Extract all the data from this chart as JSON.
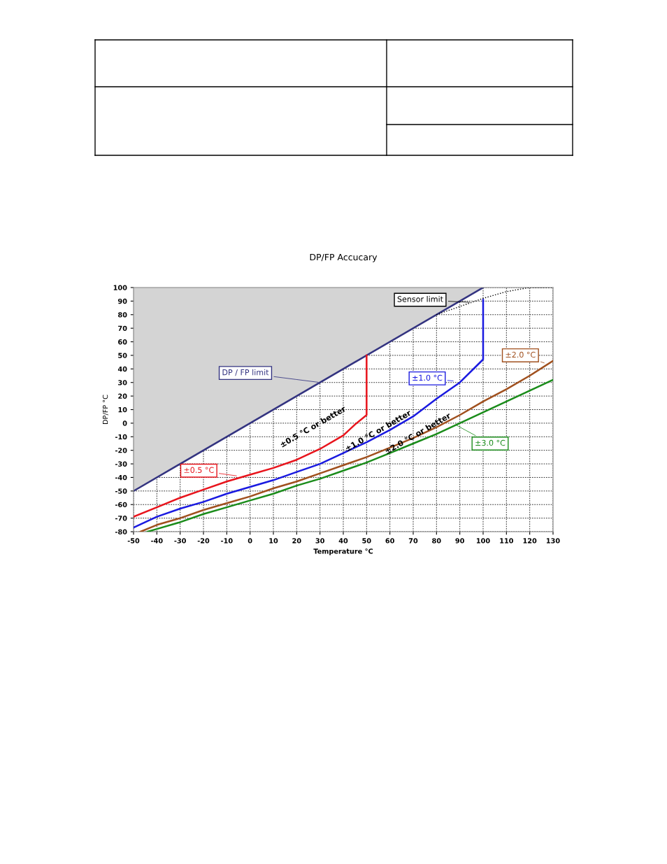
{
  "chart_data": {
    "type": "line",
    "title": "DP/FP Accucary",
    "xlabel": "Temperature °C",
    "ylabel": "DP/FP °C",
    "xlim": [
      -50,
      130
    ],
    "xticks": [
      -50,
      -40,
      -30,
      -20,
      -10,
      0,
      10,
      20,
      30,
      40,
      50,
      60,
      70,
      80,
      90,
      100,
      110,
      120,
      130
    ],
    "ylim": [
      -80,
      100
    ],
    "yticks": [
      -80,
      -70,
      -60,
      -50,
      -40,
      -30,
      -20,
      -10,
      0,
      10,
      20,
      30,
      40,
      50,
      60,
      70,
      80,
      90,
      100
    ],
    "grid": true,
    "legend": "top left",
    "line_style": "solid",
    "marker": "none",
    "series": [
      {
        "name": "DP / FP limit",
        "color": "#333380",
        "x": [
          -50,
          100
        ],
        "values": [
          -50,
          100
        ]
      },
      {
        "name": "Sensor limit",
        "color": "#000000",
        "line_style": "dotted",
        "x": [
          80,
          90,
          100,
          110,
          120,
          130
        ],
        "values": [
          80,
          86,
          92,
          97,
          100,
          100
        ]
      },
      {
        "name": "±0.5 °C",
        "color": "#e8141c",
        "x": [
          -50,
          -40,
          -30,
          -20,
          -10,
          0,
          10,
          20,
          30,
          40,
          45,
          50,
          50
        ],
        "values": [
          -69,
          -62,
          -55,
          -49,
          -43,
          -38,
          -33,
          -27,
          -19,
          -9,
          -1,
          6,
          50
        ]
      },
      {
        "name": "±1.0 °C",
        "color": "#1a1ae0",
        "x": [
          -50,
          -40,
          -30,
          -20,
          -10,
          0,
          10,
          20,
          30,
          40,
          50,
          60,
          70,
          80,
          90,
          100,
          100
        ],
        "values": [
          -77,
          -69,
          -63,
          -58,
          -52,
          -47,
          -42,
          -36,
          -30,
          -22,
          -14,
          -5,
          5,
          18,
          30,
          47,
          91
        ]
      },
      {
        "name": "±2.0 °C",
        "color": "#a0501e",
        "x": [
          -47,
          -40,
          -30,
          -20,
          -10,
          0,
          10,
          20,
          30,
          40,
          50,
          60,
          70,
          80,
          90,
          100,
          110,
          120,
          130
        ],
        "values": [
          -80,
          -75,
          -70,
          -64,
          -59,
          -54,
          -48,
          -43,
          -37,
          -31,
          -25,
          -18,
          -11,
          -3,
          6,
          16,
          25,
          35,
          46
        ]
      },
      {
        "name": "±3.0 °C",
        "color": "#1a8c1a",
        "x": [
          -44,
          -40,
          -30,
          -20,
          -10,
          0,
          10,
          20,
          30,
          40,
          50,
          60,
          70,
          80,
          90,
          100,
          110,
          120,
          130
        ],
        "values": [
          -80,
          -78,
          -73,
          -67,
          -62,
          -57,
          -52,
          -46,
          -41,
          -35,
          -29,
          -22,
          -15,
          -8,
          0,
          8,
          16,
          24,
          32
        ]
      }
    ],
    "annotations": [
      "±0.5 °C or better",
      "±1.0 °C or better",
      "±2.0 °C or better"
    ]
  }
}
